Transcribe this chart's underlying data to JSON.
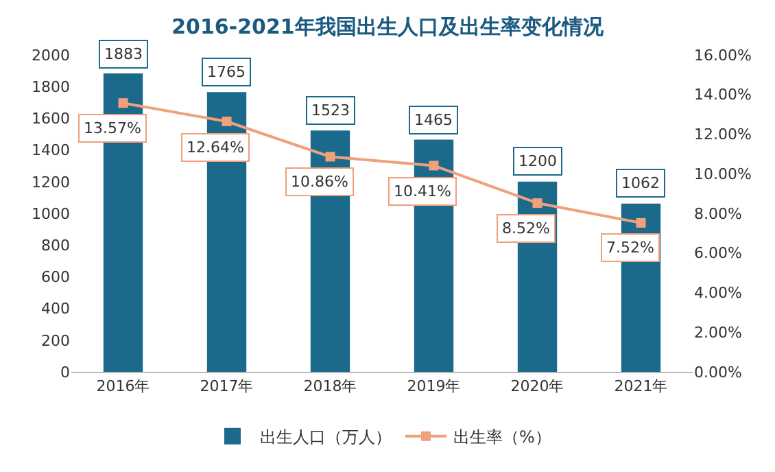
{
  "chart_data": {
    "type": "bar",
    "title": "2016-2021年我国出生人口及出生率变化情况",
    "categories": [
      "2016年",
      "2017年",
      "2018年",
      "2019年",
      "2020年",
      "2021年"
    ],
    "series": [
      {
        "name": "出生人口（万人）",
        "color": "#1b6a8c",
        "values": [
          1883,
          1765,
          1523,
          1465,
          1200,
          1062
        ],
        "value_labels": [
          "1883",
          "1765",
          "1523",
          "1465",
          "1200",
          "1062"
        ]
      },
      {
        "name": "出生率（%）",
        "type": "line",
        "axis": "y2",
        "color": "#f0a07c",
        "marker": "square",
        "values": [
          13.57,
          12.64,
          10.86,
          10.41,
          8.52,
          7.52
        ],
        "value_labels": [
          "13.57%",
          "12.64%",
          "10.86%",
          "10.41%",
          "8.52%",
          "7.52%"
        ]
      }
    ],
    "ylim": [
      0,
      2000
    ],
    "yticks": [
      0,
      200,
      400,
      600,
      800,
      1000,
      1200,
      1400,
      1600,
      1800,
      2000
    ],
    "y2lim": [
      0,
      16
    ],
    "y2ticks": [
      {
        "value": 0,
        "label": "0.00%"
      },
      {
        "value": 2,
        "label": "2.00%"
      },
      {
        "value": 4,
        "label": "4.00%"
      },
      {
        "value": 6,
        "label": "6.00%"
      },
      {
        "value": 8,
        "label": "8.00%"
      },
      {
        "value": 10,
        "label": "10.00%"
      },
      {
        "value": 12,
        "label": "12.00%"
      },
      {
        "value": 14,
        "label": "14.00%"
      },
      {
        "value": 16,
        "label": "16.00%"
      }
    ],
    "grid": false,
    "legend": "bottom"
  }
}
